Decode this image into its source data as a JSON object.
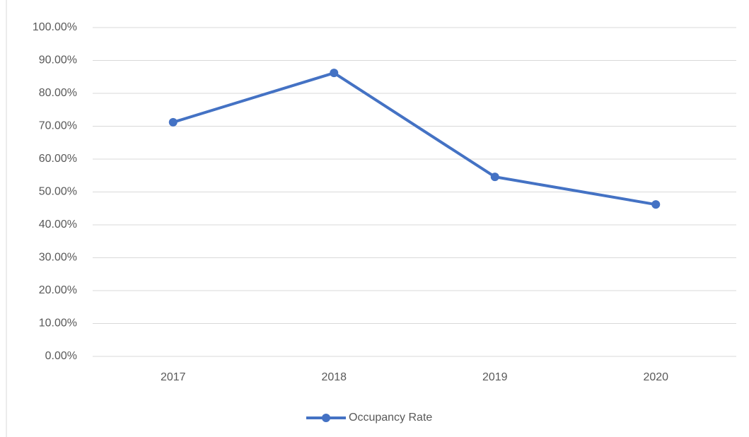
{
  "chart_data": {
    "type": "line",
    "categories": [
      "2017",
      "2018",
      "2019",
      "2020"
    ],
    "series": [
      {
        "name": "Occupancy Rate",
        "color": "#4472c4",
        "values": [
          71.2,
          86.2,
          54.6,
          46.2
        ]
      }
    ],
    "ylim": [
      0,
      100
    ],
    "yticks": [
      {
        "value": 0,
        "label": "0.00%"
      },
      {
        "value": 10,
        "label": "10.00%"
      },
      {
        "value": 20,
        "label": "20.00%"
      },
      {
        "value": 30,
        "label": "30.00%"
      },
      {
        "value": 40,
        "label": "40.00%"
      },
      {
        "value": 50,
        "label": "50.00%"
      },
      {
        "value": 60,
        "label": "60.00%"
      },
      {
        "value": 70,
        "label": "70.00%"
      },
      {
        "value": 80,
        "label": "80.00%"
      },
      {
        "value": 90,
        "label": "90.00%"
      },
      {
        "value": 100,
        "label": "100.00%"
      }
    ],
    "grid": true,
    "legend": "bottom"
  }
}
